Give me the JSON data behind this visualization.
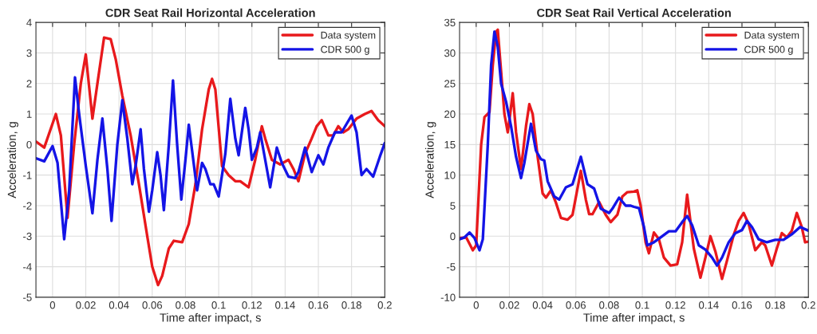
{
  "chart_data": [
    {
      "type": "line",
      "title": "CDR Seat Rail Horizontal Acceleration",
      "xlabel": "Time after impact, s",
      "ylabel": "Acceleration, g",
      "xlim": [
        -0.01,
        0.2
      ],
      "xticks": [
        0,
        0.02,
        0.04,
        0.06,
        0.08,
        0.1,
        0.12,
        0.14,
        0.16,
        0.18,
        0.2
      ],
      "ylim": [
        -5,
        4
      ],
      "yticks": [
        -5,
        -4,
        -3,
        -2,
        -1,
        0,
        1,
        2,
        3,
        4
      ],
      "grid": true,
      "legend": "top right",
      "line_style": "solid",
      "series": [
        {
          "name": "Data system",
          "color": "#e8191c",
          "x": [
            -0.01,
            -0.005,
            0.002,
            0.005,
            0.009,
            0.013,
            0.017,
            0.02,
            0.024,
            0.027,
            0.031,
            0.035,
            0.038,
            0.042,
            0.047,
            0.052,
            0.057,
            0.06,
            0.0635,
            0.066,
            0.07,
            0.073,
            0.078,
            0.082,
            0.086,
            0.09,
            0.094,
            0.096,
            0.098,
            0.102,
            0.106,
            0.11,
            0.113,
            0.118,
            0.122,
            0.126,
            0.128,
            0.132,
            0.137,
            0.142,
            0.145,
            0.148,
            0.152,
            0.156,
            0.159,
            0.162,
            0.166,
            0.169,
            0.172,
            0.175,
            0.178,
            0.183,
            0.188,
            0.192,
            0.196,
            0.2
          ],
          "values": [
            0.1,
            -0.1,
            1.0,
            0.3,
            -2.4,
            0.0,
            2.0,
            2.95,
            0.85,
            2.0,
            3.5,
            3.45,
            2.8,
            1.6,
            0.3,
            -1.3,
            -3.0,
            -4.0,
            -4.6,
            -4.3,
            -3.4,
            -3.15,
            -3.2,
            -2.6,
            -1.3,
            0.5,
            1.8,
            2.15,
            1.8,
            -0.7,
            -1.0,
            -1.2,
            -1.2,
            -1.4,
            -0.5,
            0.6,
            0.2,
            -0.5,
            -0.65,
            -0.5,
            -0.8,
            -1.2,
            -0.3,
            0.2,
            0.6,
            0.8,
            0.3,
            0.3,
            0.6,
            0.4,
            0.5,
            0.85,
            1.0,
            1.1,
            0.8,
            0.6
          ]
        },
        {
          "name": "CDR 500 g",
          "color": "#1414e6",
          "x": [
            -0.01,
            -0.005,
            0.0,
            0.003,
            0.007,
            0.01,
            0.0135,
            0.016,
            0.02,
            0.024,
            0.027,
            0.03,
            0.033,
            0.0355,
            0.039,
            0.042,
            0.045,
            0.048,
            0.05,
            0.053,
            0.055,
            0.058,
            0.06,
            0.063,
            0.065,
            0.067,
            0.07,
            0.0725,
            0.075,
            0.0775,
            0.08,
            0.082,
            0.084,
            0.087,
            0.09,
            0.092,
            0.095,
            0.097,
            0.1,
            0.104,
            0.107,
            0.11,
            0.112,
            0.116,
            0.118,
            0.12,
            0.123,
            0.125,
            0.127,
            0.131,
            0.135,
            0.138,
            0.142,
            0.146,
            0.148,
            0.152,
            0.156,
            0.16,
            0.163,
            0.166,
            0.17,
            0.174,
            0.18,
            0.183,
            0.186,
            0.189,
            0.193,
            0.197,
            0.2
          ],
          "values": [
            -0.45,
            -0.55,
            -0.05,
            -0.6,
            -3.1,
            -1.5,
            2.2,
            1.0,
            -0.7,
            -2.25,
            -0.5,
            0.85,
            -0.8,
            -2.5,
            0.0,
            1.45,
            0.2,
            -1.3,
            -0.7,
            0.5,
            -0.8,
            -2.2,
            -1.5,
            -0.25,
            -1.0,
            -2.15,
            0.0,
            2.1,
            0.0,
            -1.8,
            -0.5,
            0.65,
            -0.2,
            -1.5,
            -0.6,
            -0.8,
            -1.3,
            -1.3,
            -1.7,
            -0.3,
            1.5,
            0.2,
            -0.35,
            1.2,
            0.5,
            -0.5,
            -0.1,
            0.4,
            -0.2,
            -1.4,
            -0.1,
            -0.6,
            -1.05,
            -1.1,
            -0.9,
            -0.1,
            -0.9,
            -0.35,
            -0.65,
            -0.1,
            0.4,
            0.4,
            0.95,
            0.4,
            -1.0,
            -0.8,
            -1.05,
            -0.4,
            0.05
          ]
        }
      ]
    },
    {
      "type": "line",
      "title": "CDR Seat Rail Vertical Acceleration",
      "xlabel": "Time after impact, s",
      "ylabel": "Acceleration, g",
      "xlim": [
        -0.01,
        0.2
      ],
      "xticks": [
        0,
        0.02,
        0.04,
        0.06,
        0.08,
        0.1,
        0.12,
        0.14,
        0.16,
        0.18,
        0.2
      ],
      "ylim": [
        -10,
        35
      ],
      "yticks": [
        -10,
        -5,
        0,
        5,
        10,
        15,
        20,
        25,
        30,
        35
      ],
      "grid": true,
      "legend": "top right",
      "line_style": "solid",
      "series": [
        {
          "name": "Data system",
          "color": "#e8191c",
          "x": [
            -0.01,
            -0.006,
            -0.002,
            0.0,
            0.003,
            0.005,
            0.008,
            0.01,
            0.012,
            0.013,
            0.015,
            0.017,
            0.019,
            0.02,
            0.022,
            0.024,
            0.027,
            0.03,
            0.032,
            0.034,
            0.037,
            0.04,
            0.042,
            0.045,
            0.048,
            0.051,
            0.055,
            0.058,
            0.063,
            0.066,
            0.068,
            0.07,
            0.074,
            0.078,
            0.081,
            0.085,
            0.088,
            0.091,
            0.095,
            0.097,
            0.099,
            0.102,
            0.104,
            0.107,
            0.11,
            0.113,
            0.117,
            0.121,
            0.124,
            0.127,
            0.131,
            0.135,
            0.138,
            0.141,
            0.144,
            0.148,
            0.151,
            0.155,
            0.158,
            0.161,
            0.164,
            0.168,
            0.172,
            0.174,
            0.178,
            0.181,
            0.184,
            0.187,
            0.19,
            0.193,
            0.196,
            0.198,
            0.2
          ],
          "values": [
            -0.3,
            -0.2,
            -2.3,
            -1.5,
            15,
            19.5,
            20.3,
            28,
            33.5,
            33.8,
            27,
            20,
            17,
            19,
            23.4,
            17,
            11,
            18,
            21.6,
            20,
            13,
            7,
            6.3,
            7.5,
            5.5,
            3,
            2.7,
            3.5,
            10.7,
            6,
            3.6,
            3.6,
            5.6,
            3.5,
            2.3,
            3.5,
            6.5,
            7.2,
            7.3,
            7.5,
            5,
            -1,
            -2.8,
            0.6,
            -0.5,
            -3.5,
            -4.8,
            -4.6,
            -1,
            6.8,
            -2,
            -6.8,
            -3.5,
            0.0,
            -2.5,
            -7,
            -4,
            0.2,
            2.5,
            3.8,
            2,
            -2.3,
            -1,
            -1.5,
            -4.8,
            -2,
            0.5,
            -0.2,
            0.9,
            3.8,
            1.5,
            -1,
            -0.9
          ]
        },
        {
          "name": "CDR 500 g",
          "color": "#1414e6",
          "x": [
            -0.01,
            -0.007,
            -0.004,
            -0.001,
            0.002,
            0.004,
            0.007,
            0.009,
            0.011,
            0.013,
            0.015,
            0.018,
            0.021,
            0.024,
            0.027,
            0.029,
            0.033,
            0.036,
            0.039,
            0.041,
            0.043,
            0.047,
            0.05,
            0.054,
            0.058,
            0.063,
            0.067,
            0.071,
            0.075,
            0.08,
            0.082,
            0.086,
            0.09,
            0.093,
            0.095,
            0.098,
            0.101,
            0.103,
            0.107,
            0.111,
            0.116,
            0.12,
            0.124,
            0.127,
            0.13,
            0.134,
            0.138,
            0.142,
            0.145,
            0.148,
            0.152,
            0.156,
            0.16,
            0.163,
            0.166,
            0.17,
            0.175,
            0.18,
            0.185,
            0.19,
            0.195,
            0.2
          ],
          "values": [
            -0.5,
            -0.2,
            0.6,
            -0.3,
            -2.3,
            -0.5,
            15,
            28,
            33.5,
            31,
            25,
            22,
            18,
            13,
            9.5,
            12,
            18.4,
            14,
            12.6,
            12.4,
            9,
            6.5,
            6,
            8,
            8.5,
            13,
            8.5,
            7.8,
            4.5,
            3.8,
            4.5,
            6.3,
            5,
            5,
            4.8,
            4.6,
            1.5,
            -1.5,
            -1,
            -0.2,
            0.8,
            0.8,
            2.3,
            3.3,
            1.8,
            -1.5,
            -2.2,
            -3.5,
            -4.8,
            -3.5,
            -1.0,
            0.5,
            1,
            2.5,
            1.5,
            -0.5,
            -1,
            -0.6,
            -0.6,
            0.3,
            1.5,
            0.9
          ]
        }
      ]
    }
  ]
}
